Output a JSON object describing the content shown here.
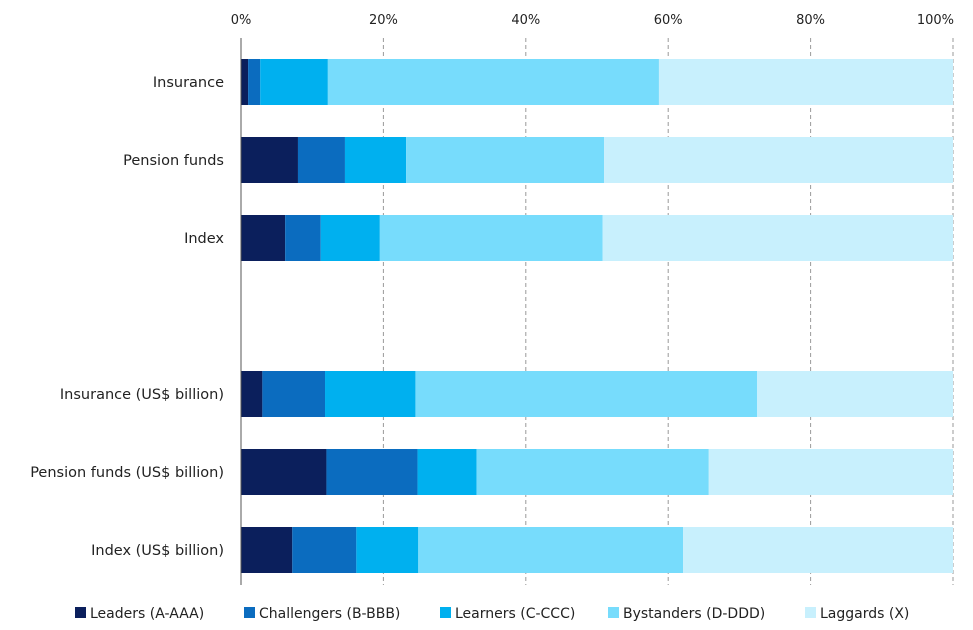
{
  "chart_data": {
    "type": "bar",
    "orientation": "horizontal",
    "stacked": true,
    "xaxis": {
      "position": "top",
      "range": [
        0,
        100
      ],
      "ticks": [
        0,
        20,
        40,
        60,
        80,
        100
      ],
      "tick_labels": [
        "0%",
        "20%",
        "40%",
        "60%",
        "80%",
        "100%"
      ],
      "gridlines": "dashed vertical"
    },
    "categories": [
      "Insurance",
      "Pension funds",
      "Index",
      "",
      "Insurance (US$ billion)",
      "Pension funds (US$ billion)",
      "Index (US$ billion)"
    ],
    "series": [
      {
        "name": "Leaders (A-AAA)",
        "color": "#0b1f5c",
        "values": [
          1,
          8,
          6.2,
          null,
          3,
          12,
          7.2
        ]
      },
      {
        "name": "Challengers (B-BBB)",
        "color": "#0b6cbf",
        "values": [
          1.7,
          6.6,
          5,
          null,
          8.8,
          12.8,
          9
        ]
      },
      {
        "name": "Learners (C-CCC)",
        "color": "#00b0ef",
        "values": [
          9.5,
          8.6,
          8.3,
          null,
          12.7,
          8.3,
          8.7
        ]
      },
      {
        "name": "Bystanders (D-DDD)",
        "color": "#77dcfc",
        "values": [
          46.5,
          27.8,
          31.3,
          null,
          48,
          32.6,
          37.2
        ]
      },
      {
        "name": "Laggards (X)",
        "color": "#c8f0fd",
        "values": [
          41.3,
          49,
          49.2,
          null,
          27.5,
          34.3,
          37.9
        ]
      }
    ],
    "legend_position": "bottom"
  }
}
